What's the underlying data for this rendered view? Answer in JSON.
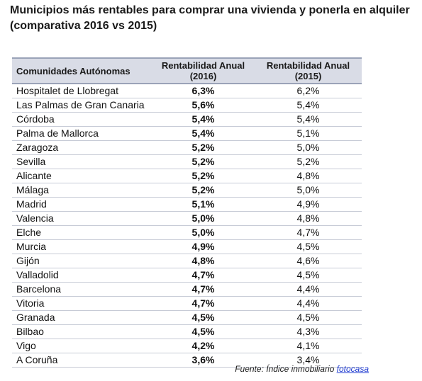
{
  "title": "Municipios más rentables para comprar una vivienda y ponerla en alquiler (comparativa 2016 vs 2015)",
  "table": {
    "headers": [
      "Comunidades Autónomas",
      "Rentabilidad Anual (2016)",
      "Rentabilidad Anual (2015)"
    ],
    "rows": [
      [
        "Hospitalet de Llobregat",
        "6,3%",
        "6,2%"
      ],
      [
        "Las Palmas de Gran Canaria",
        "5,6%",
        "5,4%"
      ],
      [
        "Córdoba",
        "5,4%",
        "5,4%"
      ],
      [
        "Palma de Mallorca",
        "5,4%",
        "5,1%"
      ],
      [
        "Zaragoza",
        "5,2%",
        "5,0%"
      ],
      [
        "Sevilla",
        "5,2%",
        "5,2%"
      ],
      [
        "Alicante",
        "5,2%",
        "4,8%"
      ],
      [
        "Málaga",
        "5,2%",
        "5,0%"
      ],
      [
        "Madrid",
        "5,1%",
        "4,9%"
      ],
      [
        "Valencia",
        "5,0%",
        "4,8%"
      ],
      [
        "Elche",
        "5,0%",
        "4,7%"
      ],
      [
        "Murcia",
        "4,9%",
        "4,5%"
      ],
      [
        "Gijón",
        "4,8%",
        "4,6%"
      ],
      [
        "Valladolid",
        "4,7%",
        "4,5%"
      ],
      [
        "Barcelona",
        "4,7%",
        "4,4%"
      ],
      [
        "Vitoria",
        "4,7%",
        "4,4%"
      ],
      [
        "Granada",
        "4,5%",
        "4,5%"
      ],
      [
        "Bilbao",
        "4,5%",
        "4,3%"
      ],
      [
        "Vigo",
        "4,2%",
        "4,1%"
      ],
      [
        "A Coruña",
        "3,6%",
        "3,4%"
      ]
    ]
  },
  "source": {
    "prefix": "Fuente: Índice inmobiliario ",
    "link": "fotocasa"
  },
  "colors": {
    "header_bg": "#d9dce6",
    "header_border": "#9aa3b8",
    "link": "#1f3bd1"
  }
}
